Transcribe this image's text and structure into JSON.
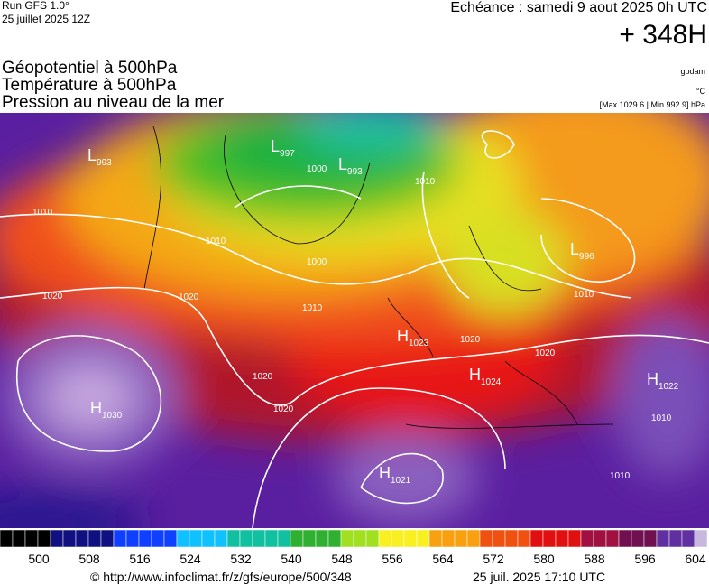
{
  "header": {
    "run": "Run GFS 1.0°",
    "date": "25 juillet 2025 12Z",
    "echeance": "Echéance : samedi 9 aout 2025 0h UTC",
    "lead": "+ 348H"
  },
  "layers": [
    "Géopotentiel à 500hPa",
    "Température à 500hPa",
    "Pression au niveau de la mer"
  ],
  "units": {
    "geopotential": "gpdam",
    "temperature": "°C",
    "pressure": "[Max 1029.6 | Min 992.9] hPa"
  },
  "centers": [
    {
      "type": "L",
      "pressure": "993"
    },
    {
      "type": "L",
      "pressure": "997"
    },
    {
      "type": "L",
      "pressure": "993"
    },
    {
      "type": "L",
      "pressure": "996"
    },
    {
      "type": "H",
      "pressure": "1023"
    },
    {
      "type": "H",
      "pressure": "1024"
    },
    {
      "type": "H",
      "pressure": "1022"
    },
    {
      "type": "H",
      "pressure": "1030"
    },
    {
      "type": "H",
      "pressure": "1021"
    }
  ],
  "isobar_labels": [
    "1010",
    "1010",
    "1010",
    "1010",
    "1010",
    "1020",
    "1020",
    "1020",
    "1020",
    "1020",
    "1020",
    "1000",
    "1000",
    "1010",
    "1010"
  ],
  "colorbar": {
    "ticks": [
      "500",
      "508",
      "516",
      "524",
      "532",
      "540",
      "548",
      "556",
      "564",
      "572",
      "580",
      "588",
      "596",
      "604"
    ]
  },
  "footer": {
    "url": "© http://www.infoclimat.fr/z/gfs/europe/500/348",
    "timestamp": "25 juil. 2025 17:10 UTC"
  }
}
